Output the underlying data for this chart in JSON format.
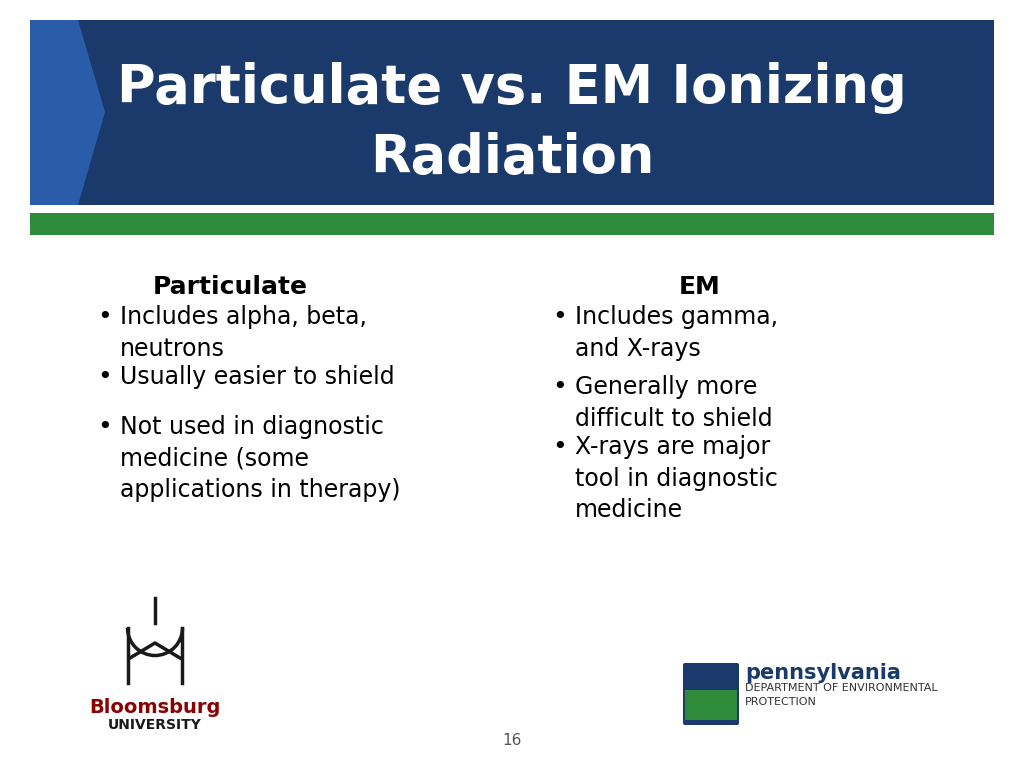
{
  "title_line1": "Particulate vs. EM Ionizing",
  "title_line2": "Radiation",
  "title_bg_color": "#1a3a6b",
  "title_text_color": "#ffffff",
  "green_bar_color": "#2e8b3a",
  "slide_bg_color": "#ffffff",
  "left_header": "Particulate",
  "right_header": "EM",
  "header_color": "#000000",
  "bullet_color": "#000000",
  "left_bullets": [
    "Includes alpha, beta,\nneutrons",
    "Usually easier to shield",
    "Not used in diagnostic\nmedicine (some\napplications in therapy)"
  ],
  "right_bullets": [
    "Includes gamma,\nand X-rays",
    "Generally more\ndifficult to shield",
    "X-rays are major\ntool in diagnostic\nmedicine"
  ],
  "page_number": "16",
  "arrow_color": "#2a5caa"
}
